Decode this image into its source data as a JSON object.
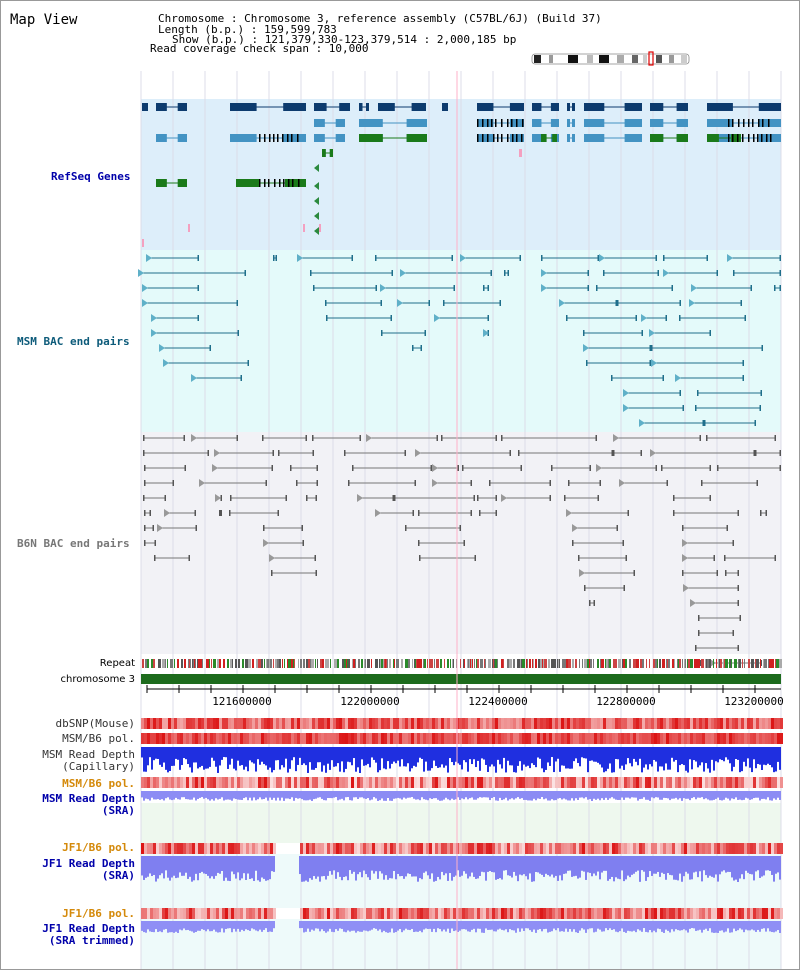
{
  "view_title": "Map View",
  "info": {
    "line1": "Chromosome    : Chromosome 3, reference assembly (C57BL/6J) (Build 37)",
    "line2": "Length (b.p.) : 159,599,783",
    "line3": "Show (b.p.) : 121,379,330-123,379,514 : 2,000,185 bp",
    "line4": "Read coverage check span : 10,000"
  },
  "tracks": {
    "refseq": "RefSeq Genes",
    "msm_bac": "MSM BAC end pairs",
    "b6n_bac": "B6N BAC end pairs",
    "repeat": "Repeat",
    "chromosome": "chromosome 3",
    "dbsnp": "dbSNP(Mouse)",
    "msm_b6_pol": "MSM/B6 pol.",
    "msm_depth_cap_1": "MSM Read Depth",
    "msm_depth_cap_2": "(Capillary)",
    "msm_b6_pol2": "MSM/B6 pol.",
    "msm_depth_sra_1": "MSM Read Depth",
    "msm_depth_sra_2": "(SRA)",
    "jf1_pol_1": "JF1/B6 pol.",
    "jf1_depth_1": "JF1 Read Depth",
    "jf1_depth_2": "(SRA)",
    "jf1_pol_2": "JF1/B6 pol.",
    "jf1_trim_1": "JF1 Read Depth",
    "jf1_trim_2": "(SRA trimmed)"
  },
  "axis": {
    "ticks": [
      "121600000",
      "122000000",
      "122400000",
      "122800000",
      "123200000"
    ]
  },
  "colors": {
    "refseq_bg": "#ddeefa",
    "msm_bg": "#e4fafa",
    "b6n_bg": "#f2f2f6",
    "gene_dark": "#0d3b6e",
    "gene_mid": "#4393c3",
    "gene_green": "#1a7a1a",
    "msm_line": "#1f6f8b",
    "b6n_line": "#666666",
    "chromosome_bar": "#1d6b1d",
    "depth_blue": "#1f2fe0",
    "depth_light": "#8a90f0",
    "pol_red": "#e83030",
    "label_blue": "#0000aa",
    "label_orange": "#d4890a",
    "label_teal": "#0d5b7a"
  }
}
